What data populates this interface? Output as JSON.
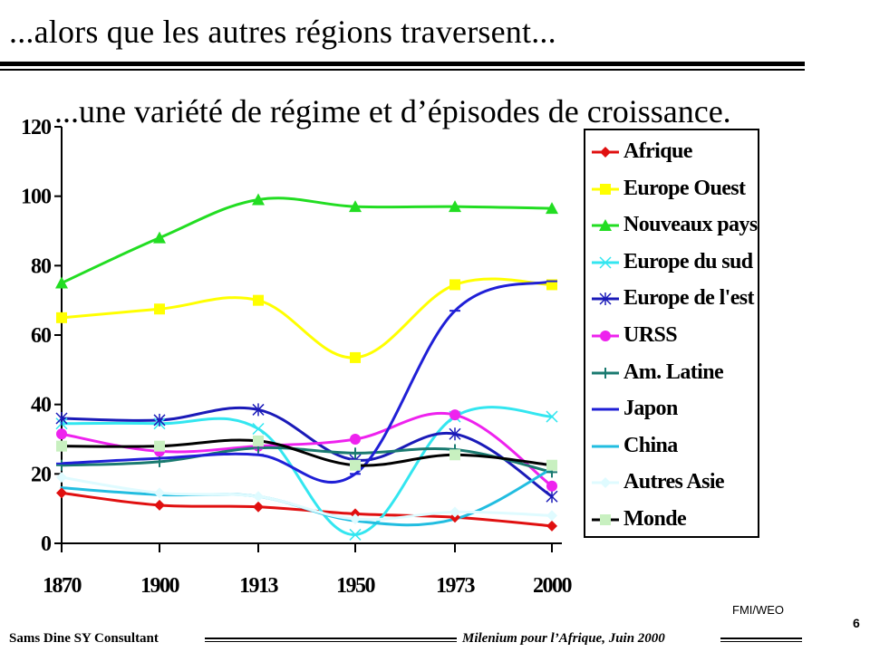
{
  "slide": {
    "title": "...alors que les autres régions traversent...",
    "subtitle": "...une variété de régime et d’épisodes de croissance.",
    "source": "FMI/WEO",
    "page_number": "6",
    "footer_left": "Sams Dine SY Consultant",
    "footer_right": "Milenium pour l’Afrique, Juin 2000"
  },
  "chart_data": {
    "type": "line",
    "title": "",
    "xlabel": "",
    "ylabel": "",
    "categories": [
      "1870",
      "1900",
      "1913",
      "1950",
      "1973",
      "2000"
    ],
    "ylim": [
      0,
      120
    ],
    "yticks": [
      0,
      20,
      40,
      60,
      80,
      100,
      120
    ],
    "legend_position": "right",
    "grid": false,
    "series": [
      {
        "name": "Afrique",
        "color": "#e01010",
        "marker": "diamond",
        "values": [
          14.5,
          11,
          10.5,
          8.5,
          7.5,
          5
        ]
      },
      {
        "name": "Europe Ouest",
        "color": "#ffff00",
        "marker": "square",
        "values": [
          65,
          67.5,
          70,
          53.5,
          74.5,
          74.5
        ]
      },
      {
        "name": "Nouveaux pays",
        "color": "#22dd22",
        "marker": "triangle",
        "values": [
          75,
          88,
          99,
          97,
          97,
          96.5
        ]
      },
      {
        "name": " Europe du sud",
        "color": "#33e6f0",
        "marker": "x",
        "values": [
          34.5,
          34.5,
          33,
          2.5,
          36.5,
          36.5
        ]
      },
      {
        "name": "Europe de l'est",
        "color": "#1a1ab8",
        "marker": "star",
        "values": [
          36,
          35.5,
          38.5,
          24,
          31.5,
          13.5
        ]
      },
      {
        "name": "URSS",
        "color": "#ee22ee",
        "marker": "circle",
        "values": [
          31.5,
          26.5,
          28,
          30,
          37,
          16.5
        ]
      },
      {
        "name": "Am. Latine",
        "color": "#1a7a70",
        "marker": "plus",
        "values": [
          22.5,
          23.5,
          27.5,
          26,
          27,
          20.5
        ]
      },
      {
        "name": "Japon",
        "color": "#1f1fd6",
        "marker": "dash",
        "values": [
          23,
          24.5,
          25.5,
          20,
          67,
          75.5
        ]
      },
      {
        "name": "China",
        "color": "#22bde0",
        "marker": "none",
        "values": [
          16,
          14,
          13.5,
          6.5,
          7,
          21.5
        ]
      },
      {
        "name": "Autres Asie",
        "color": "#dffbff",
        "marker": "diamond",
        "values": [
          19,
          14.5,
          13.5,
          7,
          9,
          8
        ]
      },
      {
        "name": "Monde",
        "color": "#000000",
        "marker": "square-green",
        "values": [
          28,
          28,
          29.5,
          22.5,
          25.5,
          22.5
        ]
      }
    ]
  }
}
